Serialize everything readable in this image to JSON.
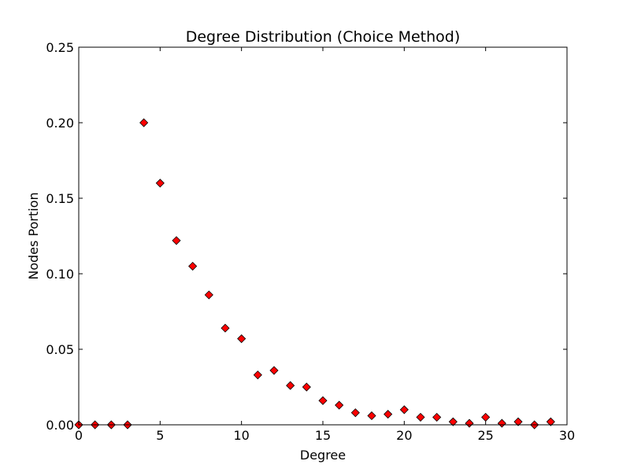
{
  "chart_data": {
    "type": "scatter",
    "title": "Degree Distribution (Choice Method)",
    "xlabel": "Degree",
    "ylabel": "Nodes Portion",
    "xlim": [
      0,
      30
    ],
    "ylim": [
      0,
      0.25
    ],
    "x_ticks": [
      "0",
      "5",
      "10",
      "15",
      "20",
      "25",
      "30"
    ],
    "y_ticks": [
      "0.00",
      "0.05",
      "0.10",
      "0.15",
      "0.20",
      "0.25"
    ],
    "grid": false,
    "marker_color": "#ff0000",
    "marker_edge_color": "#000000",
    "series": [
      {
        "x": [
          0,
          1,
          2,
          3,
          4,
          5,
          6,
          7,
          8,
          9,
          10,
          11,
          12,
          13,
          14,
          15,
          16,
          17,
          18,
          19,
          20,
          21,
          22,
          23,
          24,
          25,
          26,
          27,
          28,
          29
        ],
        "y": [
          0.0,
          0.0,
          0.0,
          0.0,
          0.2,
          0.16,
          0.122,
          0.105,
          0.086,
          0.064,
          0.057,
          0.033,
          0.036,
          0.026,
          0.025,
          0.016,
          0.013,
          0.008,
          0.006,
          0.007,
          0.01,
          0.005,
          0.005,
          0.002,
          0.001,
          0.005,
          0.001,
          0.002,
          0.0,
          0.002
        ]
      }
    ]
  }
}
